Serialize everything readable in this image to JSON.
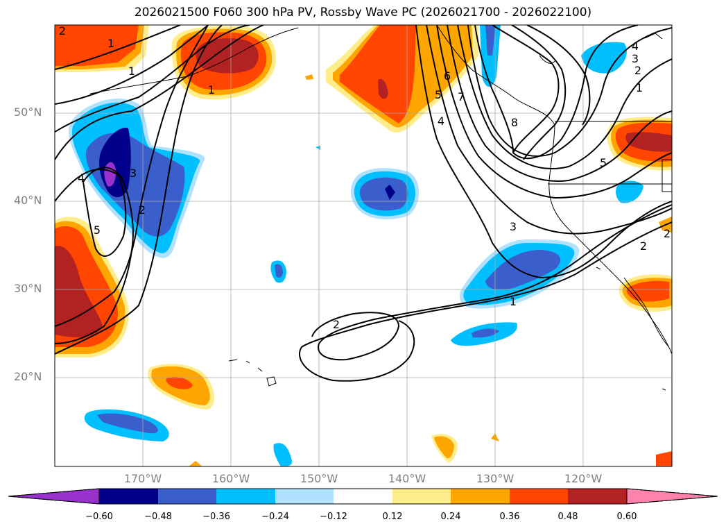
{
  "title": "2026021500 F060 300 hPa PV, Rossby Wave PC (2026021700 - 2026022100)",
  "lat_labels": [
    "50°N",
    "40°N",
    "30°N",
    "20°N"
  ],
  "lon_labels": [
    "170°W",
    "160°W",
    "150°W",
    "140°W",
    "130°W",
    "120°W"
  ],
  "colorbar": {
    "ticks": [
      "−0.60",
      "−0.48",
      "−0.36",
      "−0.24",
      "−0.12",
      "0.12",
      "0.24",
      "0.36",
      "0.48",
      "0.60"
    ],
    "colors": [
      "#9932CC",
      "#00008B",
      "#3A5FCD",
      "#00BFFF",
      "#B0E2FF",
      "#FFFFFF",
      "#FFEC8B",
      "#FFA500",
      "#FF4500",
      "#B22222",
      "#FF82AB"
    ]
  },
  "contour_labels": [
    "2",
    "1",
    "1",
    "1",
    "4",
    "3",
    "2",
    "5",
    "6",
    "5",
    "4",
    "7",
    "8",
    "3",
    "2",
    "1",
    "4",
    "3",
    "2",
    "1",
    "5",
    "2",
    "2"
  ]
}
